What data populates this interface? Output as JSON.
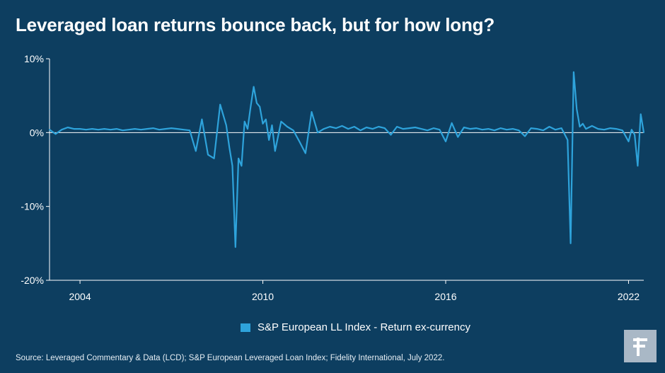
{
  "title": "Leveraged loan returns bounce back, but for how long?",
  "source": "Source: Leveraged Commentary & Data (LCD); S&P European Leveraged Loan Index; Fidelity International, July 2022.",
  "legend_label": "S&P European LL Index - Return ex-currency",
  "logo_icon": "fidelity-logo-icon",
  "colors": {
    "background": "#0d3e60",
    "line": "#2ea3db",
    "axis": "#ffffff"
  },
  "chart_data": {
    "type": "line",
    "title": "Leveraged loan returns bounce back, but for how long?",
    "xlabel": "",
    "ylabel": "",
    "ylim": [
      -20,
      10
    ],
    "xlim": [
      2003.0,
      2022.5
    ],
    "y_ticks": [
      10,
      0,
      -10,
      -20
    ],
    "y_tick_labels": [
      "10%",
      "0%",
      "-10%",
      "-20%"
    ],
    "x_ticks": [
      2004,
      2010,
      2016,
      2022
    ],
    "x_tick_labels": [
      "2004",
      "2010",
      "2016",
      "2022"
    ],
    "grid": false,
    "legend_position": "bottom-center",
    "series": [
      {
        "name": "S&P European LL Index - Return ex-currency",
        "x": [
          2003.0,
          2003.2,
          2003.4,
          2003.6,
          2003.8,
          2004.0,
          2004.2,
          2004.4,
          2004.6,
          2004.8,
          2005.0,
          2005.2,
          2005.4,
          2005.6,
          2005.8,
          2006.0,
          2006.2,
          2006.4,
          2006.6,
          2006.8,
          2007.0,
          2007.2,
          2007.4,
          2007.6,
          2007.8,
          2008.0,
          2008.2,
          2008.4,
          2008.6,
          2008.8,
          2008.9,
          2009.0,
          2009.1,
          2009.2,
          2009.3,
          2009.4,
          2009.5,
          2009.6,
          2009.7,
          2009.8,
          2009.9,
          2010.0,
          2010.1,
          2010.2,
          2010.3,
          2010.4,
          2010.6,
          2010.8,
          2011.0,
          2011.2,
          2011.4,
          2011.6,
          2011.8,
          2012.0,
          2012.2,
          2012.4,
          2012.6,
          2012.8,
          2013.0,
          2013.2,
          2013.4,
          2013.6,
          2013.8,
          2014.0,
          2014.2,
          2014.4,
          2014.6,
          2014.8,
          2015.0,
          2015.2,
          2015.4,
          2015.6,
          2015.8,
          2016.0,
          2016.2,
          2016.4,
          2016.6,
          2016.8,
          2017.0,
          2017.2,
          2017.4,
          2017.6,
          2017.8,
          2018.0,
          2018.2,
          2018.4,
          2018.6,
          2018.8,
          2019.0,
          2019.2,
          2019.4,
          2019.6,
          2019.8,
          2020.0,
          2020.1,
          2020.2,
          2020.3,
          2020.4,
          2020.5,
          2020.6,
          2020.8,
          2021.0,
          2021.2,
          2021.4,
          2021.6,
          2021.8,
          2022.0,
          2022.1,
          2022.2,
          2022.3,
          2022.4,
          2022.5
        ],
        "values": [
          0.4,
          -0.2,
          0.4,
          0.7,
          0.5,
          0.5,
          0.4,
          0.5,
          0.4,
          0.5,
          0.4,
          0.5,
          0.3,
          0.4,
          0.5,
          0.4,
          0.5,
          0.6,
          0.4,
          0.5,
          0.6,
          0.5,
          0.4,
          0.3,
          -2.5,
          1.8,
          -3.0,
          -3.5,
          3.8,
          1.0,
          -2.0,
          -4.5,
          -15.5,
          -3.5,
          -4.5,
          1.5,
          0.5,
          3.5,
          6.2,
          4.0,
          3.5,
          1.2,
          1.8,
          -1.0,
          1.0,
          -2.5,
          1.5,
          0.8,
          0.3,
          -1.2,
          -2.8,
          2.8,
          0.0,
          0.5,
          0.8,
          0.6,
          0.9,
          0.5,
          0.8,
          0.3,
          0.7,
          0.5,
          0.8,
          0.6,
          -0.3,
          0.8,
          0.5,
          0.6,
          0.7,
          0.5,
          0.3,
          0.6,
          0.4,
          -1.2,
          1.3,
          -0.6,
          0.7,
          0.5,
          0.6,
          0.4,
          0.5,
          0.3,
          0.6,
          0.4,
          0.5,
          0.3,
          -0.5,
          0.6,
          0.5,
          0.3,
          0.8,
          0.4,
          0.6,
          -1.0,
          -15.0,
          8.2,
          3.2,
          0.8,
          1.2,
          0.5,
          0.9,
          0.5,
          0.4,
          0.6,
          0.5,
          0.3,
          -1.2,
          0.4,
          -0.3,
          -4.5,
          2.5,
          0.0
        ]
      }
    ]
  }
}
